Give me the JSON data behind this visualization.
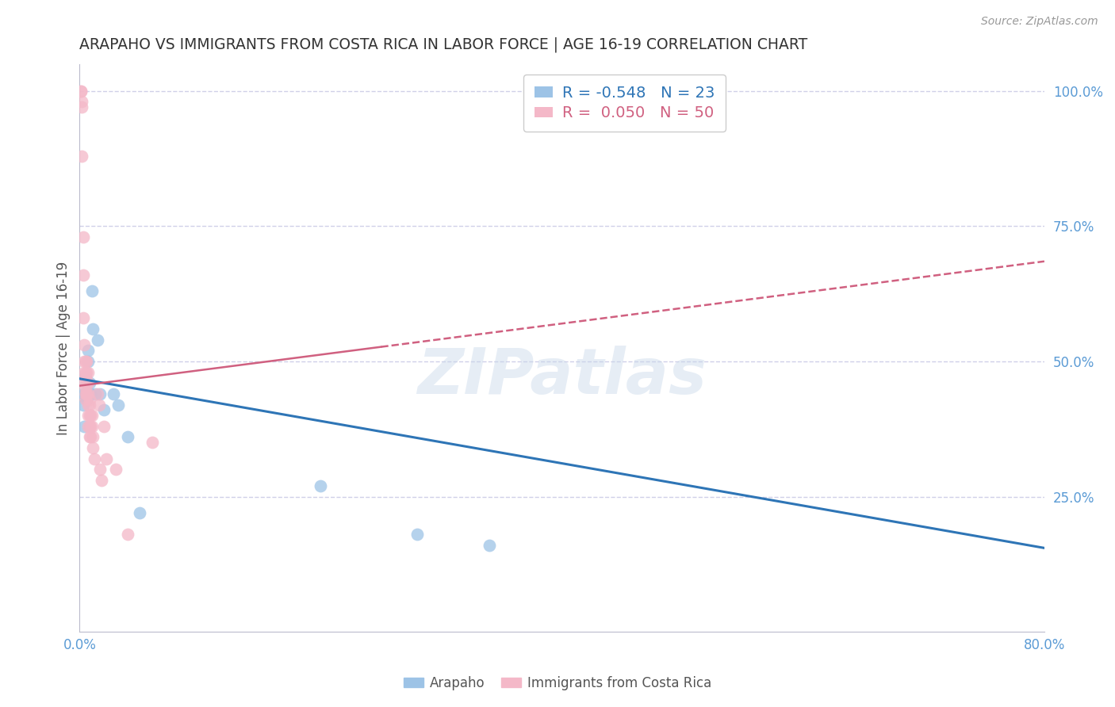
{
  "title": "ARAPAHO VS IMMIGRANTS FROM COSTA RICA IN LABOR FORCE | AGE 16-19 CORRELATION CHART",
  "source": "Source: ZipAtlas.com",
  "ylabel": "In Labor Force | Age 16-19",
  "xlim": [
    0.0,
    0.8
  ],
  "ylim": [
    0.0,
    1.05
  ],
  "xticks": [
    0.0,
    0.8
  ],
  "xtick_labels": [
    "0.0%",
    "80.0%"
  ],
  "yticks": [
    0.25,
    0.5,
    0.75,
    1.0
  ],
  "ytick_labels": [
    "25.0%",
    "50.0%",
    "75.0%",
    "100.0%"
  ],
  "background_color": "#ffffff",
  "grid_color": "#d0d0e8",
  "right_ytick_color": "#5b9bd5",
  "arapaho_color": "#9dc3e6",
  "costa_rica_color": "#f4b8c8",
  "arapaho_line_color": "#2e75b6",
  "costa_rica_line_color": "#d06080",
  "arapaho_x": [
    0.003,
    0.003,
    0.004,
    0.005,
    0.006,
    0.006,
    0.007,
    0.007,
    0.008,
    0.009,
    0.01,
    0.011,
    0.013,
    0.015,
    0.017,
    0.02,
    0.028,
    0.032,
    0.04,
    0.05,
    0.2,
    0.28,
    0.34
  ],
  "arapaho_y": [
    0.44,
    0.42,
    0.38,
    0.47,
    0.46,
    0.43,
    0.52,
    0.5,
    0.46,
    0.44,
    0.63,
    0.56,
    0.44,
    0.54,
    0.44,
    0.41,
    0.44,
    0.42,
    0.36,
    0.22,
    0.27,
    0.18,
    0.16
  ],
  "costa_rica_x": [
    0.001,
    0.001,
    0.002,
    0.002,
    0.002,
    0.003,
    0.003,
    0.003,
    0.004,
    0.004,
    0.004,
    0.004,
    0.005,
    0.005,
    0.005,
    0.005,
    0.005,
    0.005,
    0.006,
    0.006,
    0.006,
    0.006,
    0.007,
    0.007,
    0.007,
    0.007,
    0.007,
    0.007,
    0.008,
    0.008,
    0.008,
    0.008,
    0.008,
    0.009,
    0.009,
    0.009,
    0.01,
    0.01,
    0.011,
    0.011,
    0.012,
    0.015,
    0.016,
    0.017,
    0.018,
    0.02,
    0.022,
    0.03,
    0.04,
    0.06
  ],
  "costa_rica_y": [
    1.0,
    1.0,
    0.98,
    0.97,
    0.88,
    0.73,
    0.66,
    0.58,
    0.53,
    0.5,
    0.48,
    0.46,
    0.5,
    0.48,
    0.47,
    0.45,
    0.44,
    0.43,
    0.5,
    0.48,
    0.46,
    0.44,
    0.48,
    0.46,
    0.44,
    0.42,
    0.4,
    0.38,
    0.43,
    0.42,
    0.4,
    0.38,
    0.36,
    0.4,
    0.38,
    0.36,
    0.4,
    0.38,
    0.36,
    0.34,
    0.32,
    0.44,
    0.42,
    0.3,
    0.28,
    0.38,
    0.32,
    0.3,
    0.18,
    0.35
  ],
  "watermark_text": "ZIPatlas",
  "legend_R_blue": "R = -0.548",
  "legend_N_blue": "N = 23",
  "legend_R_pink": "R =  0.050",
  "legend_N_pink": "N = 50",
  "legend_label_blue": "Arapaho",
  "legend_label_pink": "Immigrants from Costa Rica",
  "arapaho_trend_x0": 0.0,
  "arapaho_trend_y0": 0.468,
  "arapaho_trend_x1": 0.8,
  "arapaho_trend_y1": 0.155,
  "costa_trend_x0": 0.0,
  "costa_trend_y0": 0.455,
  "costa_trend_x1": 0.8,
  "costa_trend_y1": 0.685
}
